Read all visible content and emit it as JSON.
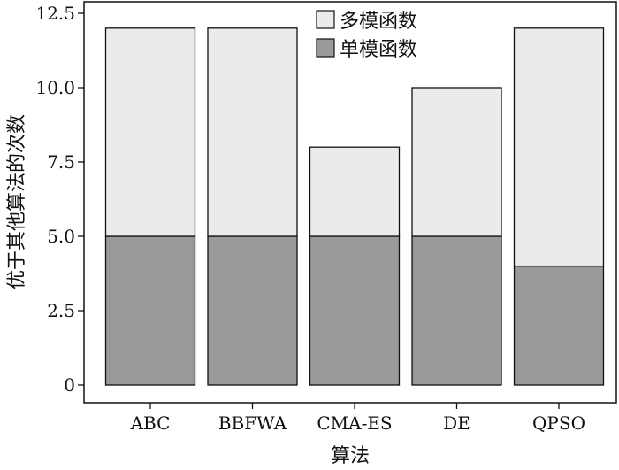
{
  "chart_data": {
    "type": "bar",
    "stacked": true,
    "categories": [
      "ABC",
      "BBFWA",
      "CMA-ES",
      "DE",
      "QPSO"
    ],
    "series": [
      {
        "name": "单模函数",
        "values": [
          5,
          5,
          5,
          5,
          4
        ],
        "color": "#999999"
      },
      {
        "name": "多模函数",
        "values": [
          7,
          7,
          3,
          5,
          8
        ],
        "color": "#ebebeb"
      }
    ],
    "xlabel": "算法",
    "ylabel": "优于其他算法的次数",
    "ylim": [
      0,
      12.5
    ],
    "yticks": [
      "0",
      "2.5",
      "5.0",
      "7.5",
      "10.0",
      "12.5"
    ],
    "ytick_values": [
      0,
      2.5,
      5.0,
      7.5,
      10.0,
      12.5
    ],
    "grid": false,
    "legend_position": "top-center",
    "legend_order": [
      1,
      0
    ]
  }
}
